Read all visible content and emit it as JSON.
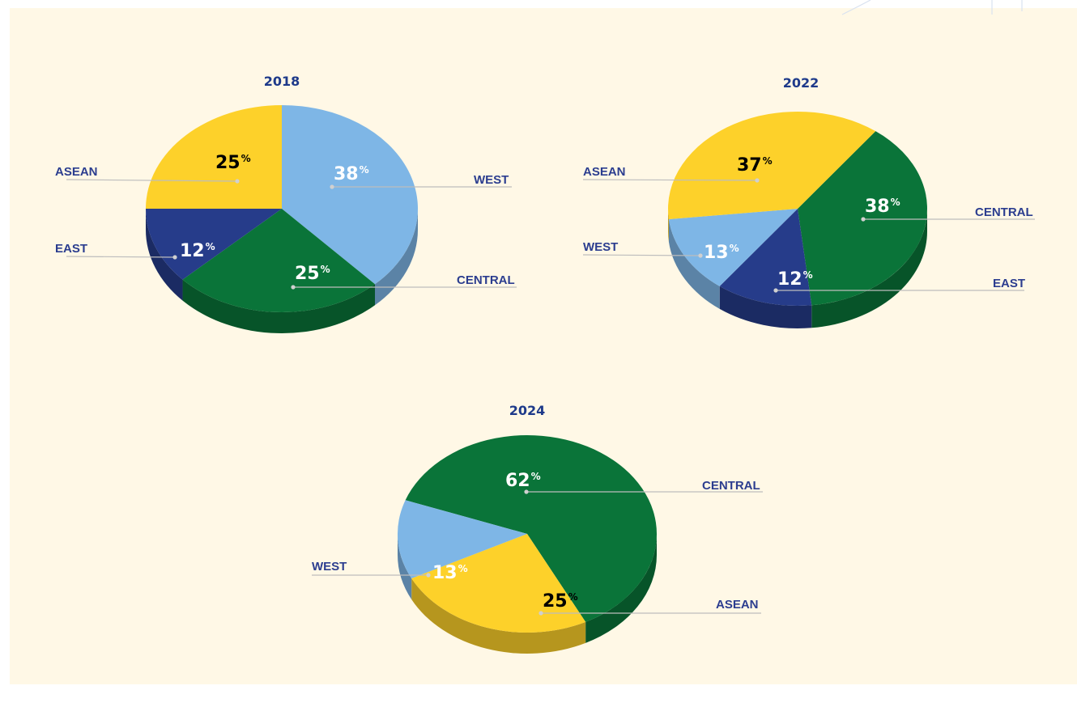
{
  "colors": {
    "background": "#FFF8E6",
    "label_text": "#2B3D8F",
    "title_text": "#1E3A8A",
    "leader_line": "#BDBDBD",
    "ASEAN": "#FDD12A",
    "WEST": "#7EB6E6",
    "CENTRAL": "#0A7439",
    "EAST": "#263C8A"
  },
  "chart_data": [
    {
      "type": "pie",
      "title": "2018",
      "slices": [
        {
          "label": "WEST",
          "value": 38,
          "display": "38"
        },
        {
          "label": "CENTRAL",
          "value": 25,
          "display": "25"
        },
        {
          "label": "EAST",
          "value": 12,
          "display": "12"
        },
        {
          "label": "ASEAN",
          "value": 25,
          "display": "25"
        }
      ],
      "percent_symbol": "%"
    },
    {
      "type": "pie",
      "title": "2022",
      "slices": [
        {
          "label": "CENTRAL",
          "value": 38,
          "display": "38"
        },
        {
          "label": "EAST",
          "value": 12,
          "display": "12"
        },
        {
          "label": "WEST",
          "value": 13,
          "display": "13"
        },
        {
          "label": "ASEAN",
          "value": 37,
          "display": "37"
        }
      ],
      "percent_symbol": "%"
    },
    {
      "type": "pie",
      "title": "2024",
      "slices": [
        {
          "label": "CENTRAL",
          "value": 62,
          "display": "62"
        },
        {
          "label": "ASEAN",
          "value": 25,
          "display": "25"
        },
        {
          "label": "WEST",
          "value": 13,
          "display": "13"
        }
      ],
      "percent_symbol": "%"
    }
  ]
}
